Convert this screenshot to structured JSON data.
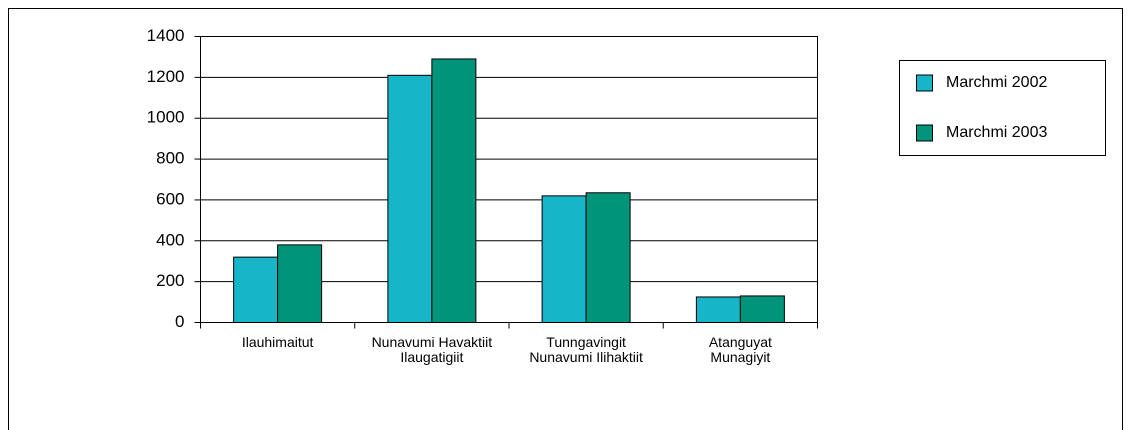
{
  "chart_data": {
    "type": "bar",
    "categories": [
      [
        "Ilauhimaitut"
      ],
      [
        "Nunavumi Havaktiit",
        "Ilaugatigiit"
      ],
      [
        "Tunngavingit",
        "Nunavumi Ilihaktiit"
      ],
      [
        "Atanguyat",
        "Munagiyit"
      ]
    ],
    "series": [
      {
        "name": "Marchmi 2002",
        "color": "#16b6c8",
        "values": [
          320,
          1210,
          620,
          125
        ]
      },
      {
        "name": "Marchmi 2003",
        "color": "#00957a",
        "values": [
          380,
          1290,
          635,
          130
        ]
      }
    ],
    "ylim": [
      0,
      1400
    ],
    "yticks": [
      0,
      200,
      400,
      600,
      800,
      1000,
      1200,
      1400
    ],
    "grid": true
  }
}
